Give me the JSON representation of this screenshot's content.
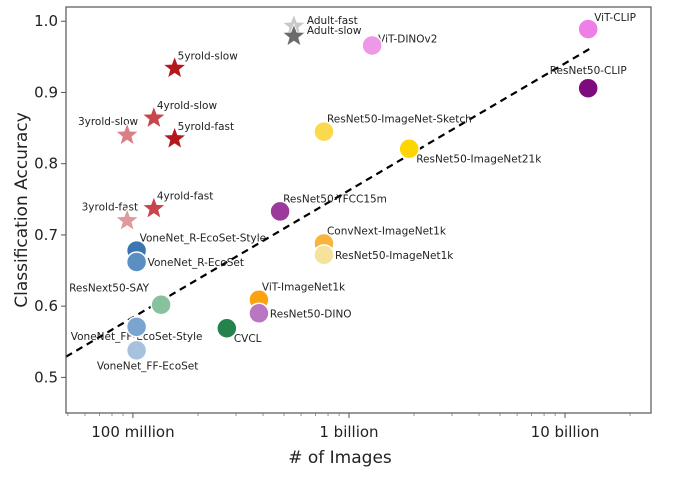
{
  "chart_data": {
    "type": "scatter",
    "title": "",
    "xlabel": "# of Images",
    "ylabel": "Classification Accuracy",
    "xscale": "log",
    "xlim": [
      49000000,
      25000000000
    ],
    "ylim": [
      0.45,
      1.02
    ],
    "grid": false,
    "x_ticks": [
      {
        "value": 100000000,
        "label": "100 million"
      },
      {
        "value": 1000000000,
        "label": "1 billion"
      },
      {
        "value": 10000000000,
        "label": "10 billion"
      }
    ],
    "y_ticks": [
      {
        "value": 0.5,
        "label": "0.5"
      },
      {
        "value": 0.6,
        "label": "0.6"
      },
      {
        "value": 0.7,
        "label": "0.7"
      },
      {
        "value": 0.8,
        "label": "0.8"
      },
      {
        "value": 0.9,
        "label": "0.9"
      },
      {
        "value": 1.0,
        "label": "1.0"
      }
    ],
    "trend_line": {
      "style": "dashed",
      "color": "#000000",
      "points": [
        [
          49000000,
          0.529
        ],
        [
          13300000000,
          0.963
        ]
      ]
    },
    "points": [
      {
        "name": "Adult-fast",
        "x": 556000000,
        "y": 0.993,
        "marker": "star",
        "color": "#c8c8c8",
        "label_pos": "right-top"
      },
      {
        "name": "Adult-slow",
        "x": 556000000,
        "y": 0.979,
        "marker": "star",
        "color": "#6b6b6b",
        "label_pos": "right-top"
      },
      {
        "name": "5yrold-slow",
        "x": 156000000,
        "y": 0.934,
        "marker": "star",
        "color": "#b5181c",
        "label_pos": "right-top"
      },
      {
        "name": "4yrold-slow",
        "x": 125000000,
        "y": 0.864,
        "marker": "star",
        "color": "#c6474b",
        "label_pos": "right-top"
      },
      {
        "name": "3yrold-slow",
        "x": 94000000,
        "y": 0.84,
        "marker": "star",
        "color": "#d98084",
        "label_pos": "left-top"
      },
      {
        "name": "5yrold-fast",
        "x": 156000000,
        "y": 0.835,
        "marker": "star",
        "color": "#b5181c",
        "label_pos": "right-top"
      },
      {
        "name": "4yrold-fast",
        "x": 125000000,
        "y": 0.737,
        "marker": "star",
        "color": "#c6474b",
        "label_pos": "right-top"
      },
      {
        "name": "3yrold-fast",
        "x": 94000000,
        "y": 0.72,
        "marker": "star",
        "color": "#e09a9d",
        "label_pos": "left-top"
      },
      {
        "name": "ViT-DINOv2",
        "x": 1280000000,
        "y": 0.966,
        "marker": "circle",
        "color": "#ee98e8",
        "label_pos": "right-top"
      },
      {
        "name": "ViT-CLIP",
        "x": 12800000000,
        "y": 0.989,
        "marker": "circle",
        "color": "#ee7fe6",
        "label_pos": "right-top"
      },
      {
        "name": "ResNet50-CLIP",
        "x": 12800000000,
        "y": 0.906,
        "marker": "circle",
        "color": "#7e0b7e",
        "label_pos": "above"
      },
      {
        "name": "ResNet50-ImageNet-Sketch",
        "x": 766000000,
        "y": 0.845,
        "marker": "circle",
        "color": "#fbd94f",
        "label_pos": "right-top"
      },
      {
        "name": "ResNet50-ImageNet21k",
        "x": 1900000000,
        "y": 0.821,
        "marker": "circle",
        "color": "#fdd600",
        "label_pos": "right-bottom"
      },
      {
        "name": "ResNet50-YFCC15m",
        "x": 480000000,
        "y": 0.733,
        "marker": "circle",
        "color": "#9b3a9b",
        "label_pos": "right-top"
      },
      {
        "name": "ConvNext-ImageNet1k",
        "x": 766000000,
        "y": 0.688,
        "marker": "circle",
        "color": "#f9b43c",
        "label_pos": "right-top"
      },
      {
        "name": "ResNet50-ImageNet1k",
        "x": 766000000,
        "y": 0.672,
        "marker": "circle",
        "color": "#f7e29c",
        "label_pos": "right"
      },
      {
        "name": "VoneNet_R-EcoSet-Style",
        "x": 104000000,
        "y": 0.678,
        "marker": "circle",
        "color": "#3a77b2",
        "label_pos": "right-top"
      },
      {
        "name": "VoneNet_R-EcoSet",
        "x": 104000000,
        "y": 0.662,
        "marker": "circle",
        "color": "#5b8fc3",
        "label_pos": "right"
      },
      {
        "name": "ResNext50-SAY",
        "x": 135000000,
        "y": 0.602,
        "marker": "circle",
        "color": "#88c19d",
        "label_pos": "left-top"
      },
      {
        "name": "ViT-ImageNet1k",
        "x": 383000000,
        "y": 0.609,
        "marker": "circle",
        "color": "#fba30f",
        "label_pos": "right-top"
      },
      {
        "name": "ResNet50-DINO",
        "x": 383000000,
        "y": 0.59,
        "marker": "circle",
        "color": "#b977c2",
        "label_pos": "right"
      },
      {
        "name": "CVCL",
        "x": 272000000,
        "y": 0.569,
        "marker": "circle",
        "color": "#24834d",
        "label_pos": "right-bottom"
      },
      {
        "name": "VoneNet_FF-EcoSet-Style",
        "x": 104000000,
        "y": 0.571,
        "marker": "circle",
        "color": "#7ba5cf",
        "label_pos": "below"
      },
      {
        "name": "VoneNet_FF-EcoSet",
        "x": 104000000,
        "y": 0.538,
        "marker": "circle",
        "color": "#a8c2de",
        "label_pos": "below"
      }
    ]
  }
}
